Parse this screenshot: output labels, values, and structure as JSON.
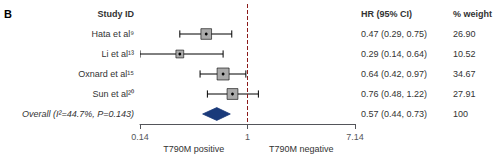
{
  "chart_data": {
    "type": "forest",
    "panel_label": "B",
    "column_headers": [
      "Study ID",
      "HR (95% CI)",
      "% weight"
    ],
    "categories": [
      "Hata et al⁹",
      "Li et al¹³",
      "Oxnard et al¹⁵",
      "Sun et al²⁰"
    ],
    "values": [
      0.47,
      0.29,
      0.64,
      0.76
    ],
    "lower": [
      0.29,
      0.14,
      0.42,
      0.48
    ],
    "upper": [
      0.75,
      0.64,
      0.97,
      1.22
    ],
    "weights": [
      26.9,
      10.52,
      34.67,
      27.91
    ],
    "value_labels": [
      "0.47 (0.29, 0.75)",
      "0.29 (0.14, 0.64)",
      "0.64 (0.42, 0.97)",
      "0.76 (0.48, 1.22)"
    ],
    "weight_labels": [
      "26.90",
      "10.52",
      "34.67",
      "27.91"
    ],
    "marker": "square",
    "color": "#aaaaaa",
    "ci_color": "#000000",
    "overall": {
      "label": "Overall (I²=44.7%, P=0.143)",
      "value": 0.57,
      "lower": 0.44,
      "upper": 0.73,
      "value_label": "0.57 (0.44, 0.73)",
      "weight_label": "100",
      "marker": "diamond",
      "color": "#1a3a7a"
    },
    "xlim": [
      0.14,
      7.14
    ],
    "xticks": [
      0.14,
      1,
      7.14
    ],
    "log": "x",
    "grid": false,
    "reference_line": {
      "value": 1,
      "color": "#8b1a1a",
      "line_style": "dashed"
    },
    "direction_labels": [
      "T790M positive",
      "T790M negative"
    ]
  }
}
